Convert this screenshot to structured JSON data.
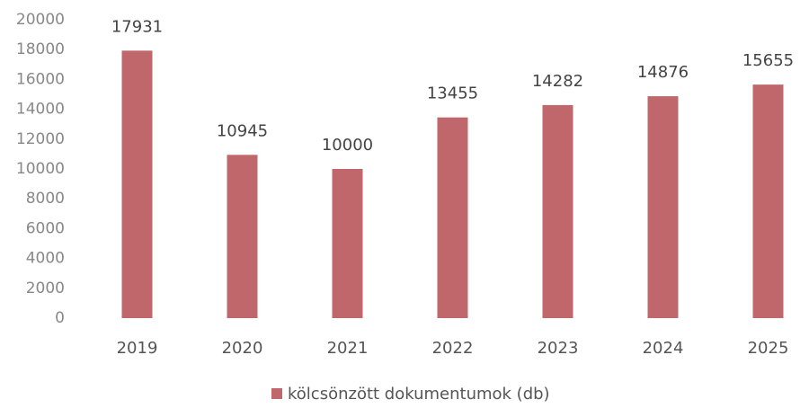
{
  "chart_data": {
    "type": "bar",
    "categories": [
      "2019",
      "2020",
      "2021",
      "2022",
      "2023",
      "2024",
      "2025"
    ],
    "series": [
      {
        "name": "kölcsönzött dokumentumok (db)",
        "color": "#c0676c",
        "values": [
          17931,
          10945,
          10000,
          13455,
          14282,
          14876,
          15655
        ]
      }
    ],
    "ylim": [
      0,
      20000
    ],
    "yticks": [
      0,
      2000,
      4000,
      6000,
      8000,
      10000,
      12000,
      14000,
      16000,
      18000,
      20000
    ],
    "grid": false,
    "legend": "bottom"
  }
}
